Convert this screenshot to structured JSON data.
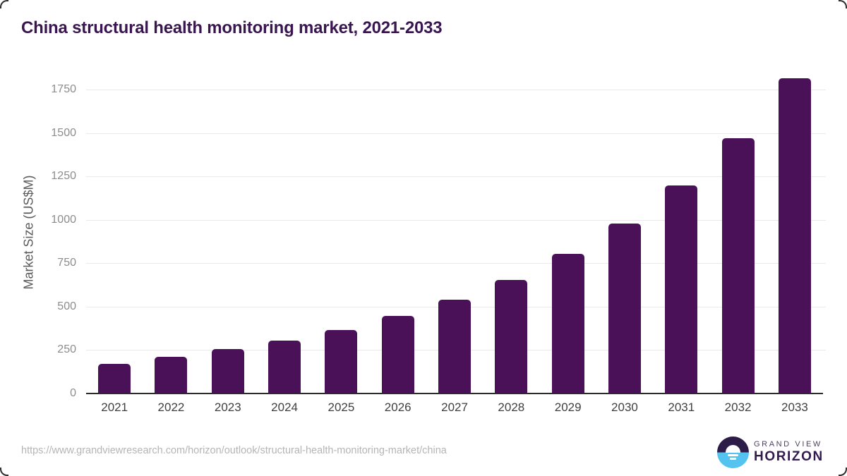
{
  "header": {
    "title": "China structural health monitoring market, 2021-2033"
  },
  "footer": {
    "source_url": "https://www.grandviewresearch.com/horizon/outlook/structural-health-monitoring-market/china",
    "logo_line1": "GRAND VIEW",
    "logo_line2": "HORIZON"
  },
  "colors": {
    "bar": "#4a1158",
    "title": "#39164f",
    "grid": "#e9e9e9",
    "axis_line": "#2b2b2b",
    "y_tick": "#8c8c8c",
    "x_tick": "#3f3f3f",
    "axis_title": "#5a5a5a",
    "url": "#b5b5b5",
    "logo_dark": "#2d1c48",
    "logo_blue": "#55c3f0",
    "logo_text": "#311b4f",
    "logo_subtext": "#4e4260"
  },
  "chart_data": {
    "type": "bar",
    "title": "China structural health monitoring market, 2021-2033",
    "categories": [
      "2021",
      "2022",
      "2023",
      "2024",
      "2025",
      "2026",
      "2027",
      "2028",
      "2029",
      "2030",
      "2031",
      "2032",
      "2033"
    ],
    "values": [
      170,
      210,
      255,
      305,
      365,
      445,
      540,
      655,
      805,
      980,
      1200,
      1470,
      1815
    ],
    "xlabel": "",
    "ylabel": "Market Size (US$M)",
    "ylim": [
      0,
      1860
    ],
    "yticks": [
      0,
      250,
      500,
      750,
      1000,
      1250,
      1500,
      1750
    ],
    "grid": "horizontal",
    "legend": "none",
    "bar_color": "#4a1158"
  }
}
